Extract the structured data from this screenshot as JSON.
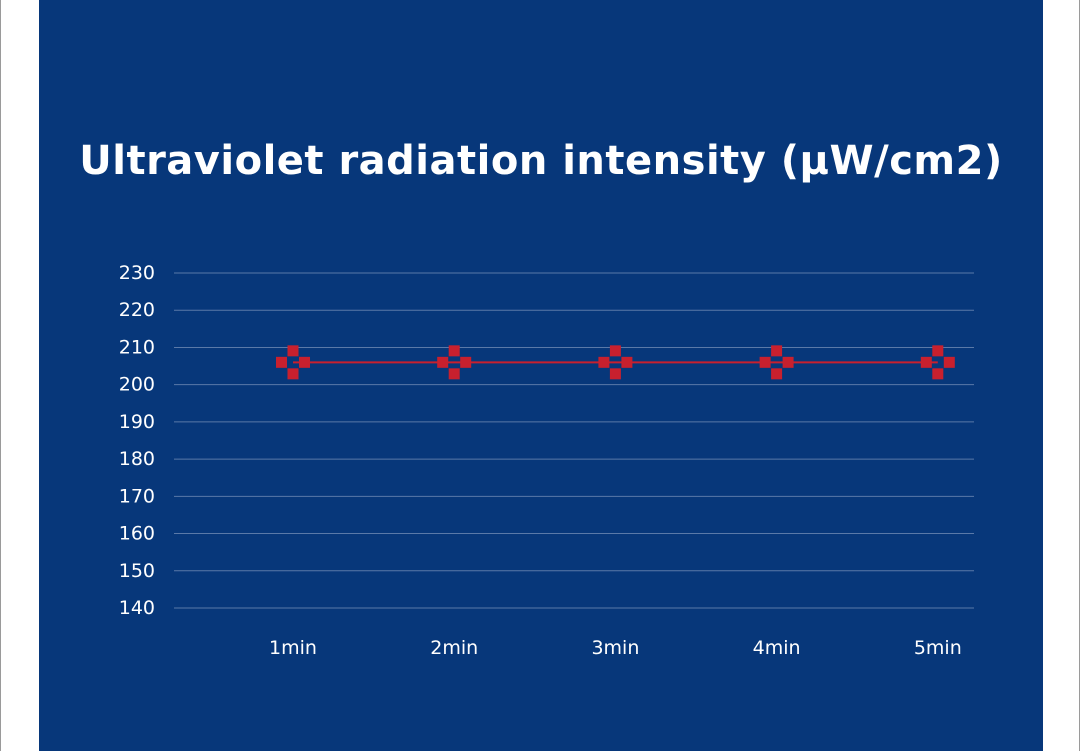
{
  "colors": {
    "background": "#07377a",
    "gridline": "#5a79a8",
    "series": "#c8202e",
    "text": "#ffffff"
  },
  "chart_data": {
    "type": "line",
    "title": "Ultraviolet radiation intensity (μW/cm2)",
    "xlabel": "",
    "ylabel": "",
    "categories": [
      "1min",
      "2min",
      "3min",
      "4min",
      "5min"
    ],
    "series": [
      {
        "values": [
          206,
          206,
          206,
          206,
          206
        ]
      }
    ],
    "ylim": [
      140,
      230
    ],
    "yticks": [
      230,
      220,
      210,
      200,
      190,
      180,
      170,
      160,
      150,
      140
    ],
    "grid": true,
    "marker": "cross"
  }
}
